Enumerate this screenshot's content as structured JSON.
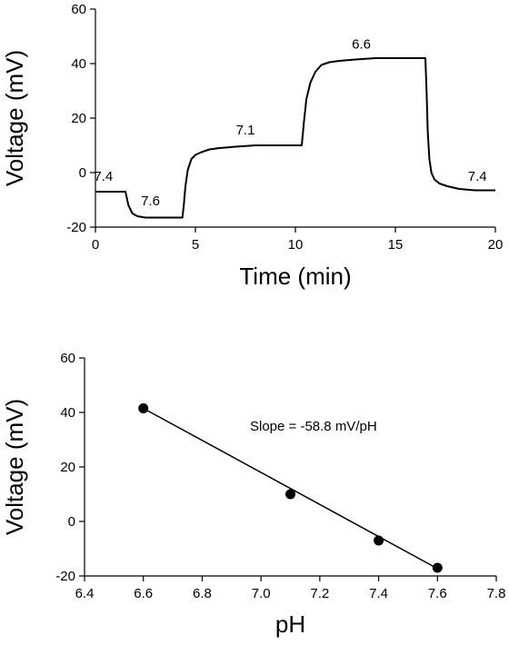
{
  "chart_data": [
    {
      "type": "line",
      "xlabel": "Time (min)",
      "ylabel": "Voltage (mV)",
      "xlim": [
        0,
        20
      ],
      "ylim": [
        -20,
        60
      ],
      "xticks": [
        0,
        5,
        10,
        15,
        20
      ],
      "yticks": [
        -20,
        0,
        20,
        40,
        60
      ],
      "grid": false,
      "series": [
        {
          "x": [
            0,
            1.4,
            1.5,
            1.65,
            1.85,
            2.1,
            2.5,
            3.0,
            3.5,
            4.0,
            4.35,
            4.42,
            4.5,
            4.62,
            4.8,
            5.0,
            5.3,
            5.7,
            6.2,
            7.0,
            8.0,
            9.0,
            9.8,
            10.2,
            10.32,
            10.42,
            10.55,
            10.75,
            11.0,
            11.3,
            11.7,
            12.2,
            13.0,
            14.0,
            15.0,
            16.0,
            16.5,
            16.56,
            16.62,
            16.7,
            16.8,
            16.95,
            17.2,
            17.6,
            18.2,
            19.0,
            20.0
          ],
          "y": [
            -7,
            -7,
            -7,
            -12,
            -15,
            -16,
            -16.5,
            -16.5,
            -16.5,
            -16.5,
            -16.5,
            -12,
            -5,
            1,
            5,
            6.5,
            7.5,
            8.5,
            9,
            9.5,
            10,
            10,
            10,
            10,
            10,
            18,
            27,
            33,
            37,
            39.5,
            40.5,
            41,
            41.5,
            42,
            42,
            42,
            42,
            30,
            15,
            5,
            0,
            -2.5,
            -4,
            -5,
            -6,
            -6.5,
            -6.5
          ]
        }
      ],
      "annotations": [
        {
          "text": "7.4",
          "x": 0.4,
          "y": -3
        },
        {
          "text": "7.6",
          "x": 2.75,
          "y": -12
        },
        {
          "text": "7.1",
          "x": 7.5,
          "y": 14
        },
        {
          "text": "6.6",
          "x": 13.3,
          "y": 45.5
        },
        {
          "text": "7.4",
          "x": 19.1,
          "y": -3
        }
      ]
    },
    {
      "type": "scatter",
      "xlabel": "pH",
      "ylabel": "Voltage (mV)",
      "xlim": [
        6.4,
        7.8
      ],
      "ylim": [
        -20,
        60
      ],
      "xticks": [
        "6.4",
        "6.6",
        "6.8",
        "7.0",
        "7.2",
        "7.4",
        "7.6",
        "7.8"
      ],
      "yticks": [
        -20,
        0,
        20,
        40,
        60
      ],
      "grid": false,
      "points": {
        "x": [
          6.6,
          7.1,
          7.4,
          7.6
        ],
        "y": [
          41.5,
          10,
          -7,
          -17
        ]
      },
      "fit_line": {
        "x": [
          6.6,
          7.6
        ],
        "y": [
          41.5,
          -17.3
        ]
      },
      "annotation": "Slope = -58.8 mV/pH"
    }
  ]
}
